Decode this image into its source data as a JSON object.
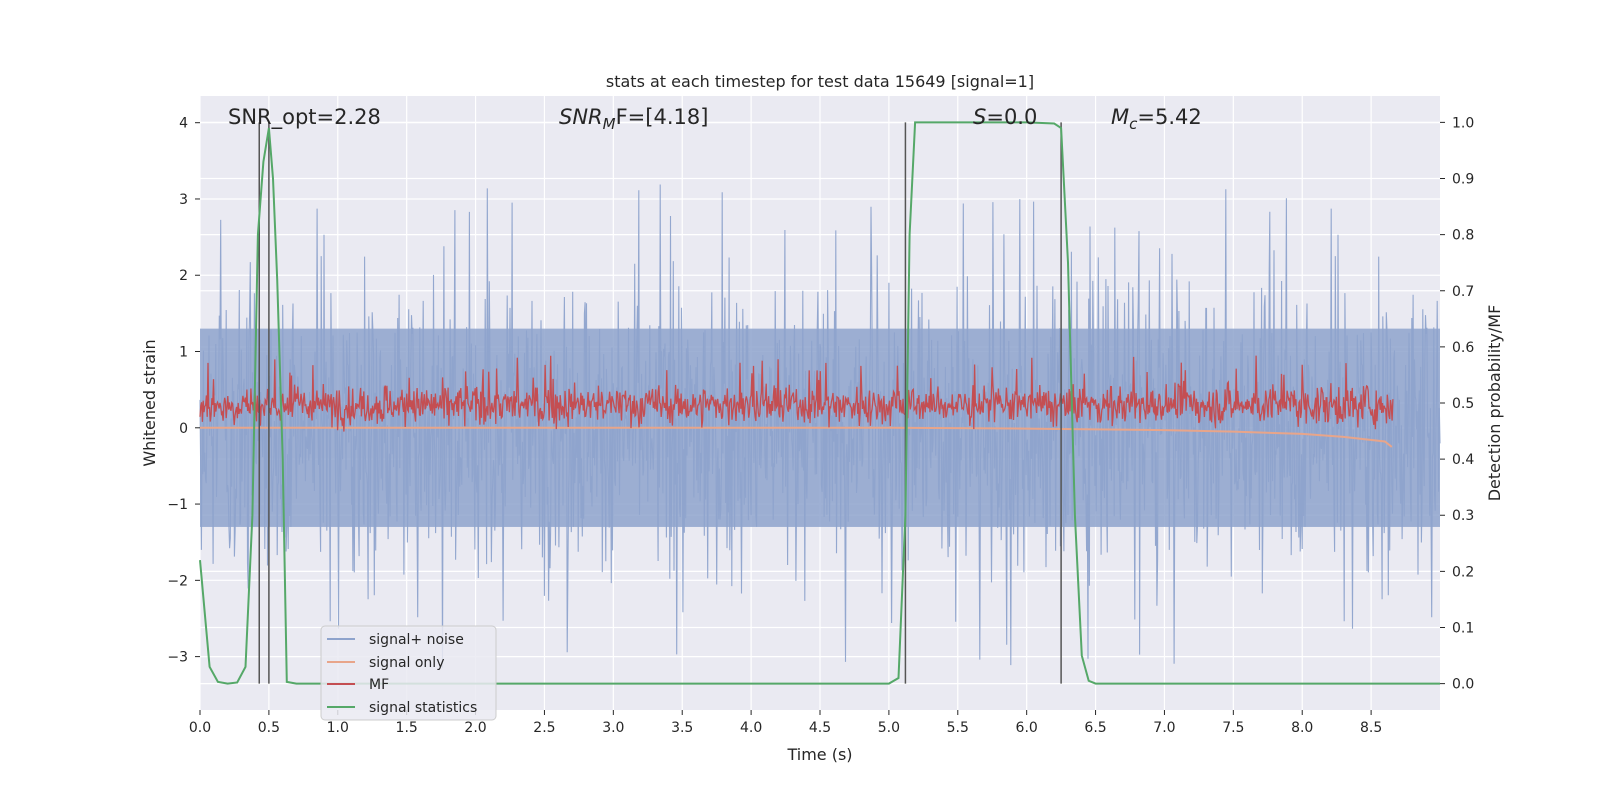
{
  "chart_data": {
    "type": "line",
    "title": "stats at each timestep for test data 15649 [signal=1]",
    "xlabel": "Time (s)",
    "ylabel_left": "Whitened strain",
    "ylabel_right": "Detection probability/MF",
    "xlim": [
      0,
      9.0
    ],
    "ylim_left": [
      -3.7,
      4.35
    ],
    "ylim_right": [
      -0.047,
      1.047
    ],
    "xticks": [
      "0.0",
      "0.5",
      "1.0",
      "1.5",
      "2.0",
      "2.5",
      "3.0",
      "3.5",
      "4.0",
      "4.5",
      "5.0",
      "5.5",
      "6.0",
      "6.5",
      "7.0",
      "7.5",
      "8.0",
      "8.5"
    ],
    "yticks_left": [
      "4",
      "3",
      "2",
      "1",
      "0",
      "−1",
      "−2",
      "−3"
    ],
    "yticks_right": [
      "1.0",
      "0.9",
      "0.8",
      "0.7",
      "0.6",
      "0.5",
      "0.4",
      "0.3",
      "0.2",
      "0.1",
      "0.0"
    ],
    "grid": true,
    "legend_position": "lower-left",
    "annotations": {
      "snr_opt": "SNR_opt=2.28",
      "snr_mf_sym": "SNR",
      "snr_mf_sub": "M",
      "snr_mf_rest": "F=[4.18]",
      "s_sym": "S",
      "s_rest": "=0.0",
      "mc_sym": "M",
      "mc_sub": "c",
      "mc_rest": "=5.42"
    },
    "vertical_markers": [
      0.43,
      0.5,
      5.12,
      6.25
    ],
    "series": [
      {
        "name": "signal+ noise",
        "color": "#8ea3cc",
        "axis": "left",
        "description": "noise band",
        "center": 0.0,
        "typical_range": [
          -1.3,
          1.3
        ],
        "max": 4.0,
        "min": -3.45
      },
      {
        "name": "signal only",
        "color": "#e8a58a",
        "axis": "left",
        "values_x": [
          0,
          1,
          2,
          3,
          4,
          5,
          6,
          7,
          7.5,
          8,
          8.3,
          8.6,
          8.65
        ],
        "values_y": [
          0.0,
          0.0,
          0.0,
          0.0,
          0.0,
          0.0,
          -0.01,
          -0.03,
          -0.05,
          -0.08,
          -0.12,
          -0.18,
          -0.25
        ]
      },
      {
        "name": "MF",
        "color": "#c44e52",
        "axis": "left",
        "center": 0.3,
        "typical_range": [
          0.0,
          0.65
        ],
        "max": 0.97
      },
      {
        "name": "signal statistics",
        "color": "#55a868",
        "axis": "right",
        "x": [
          0.0,
          0.07,
          0.13,
          0.2,
          0.27,
          0.33,
          0.38,
          0.42,
          0.46,
          0.5,
          0.53,
          0.56,
          0.6,
          0.63,
          0.7,
          1.0,
          2.0,
          3.0,
          4.0,
          4.5,
          5.0,
          5.07,
          5.12,
          5.15,
          5.19,
          5.5,
          6.0,
          6.2,
          6.25,
          6.3,
          6.35,
          6.4,
          6.45,
          6.5,
          7.0,
          8.0,
          9.0
        ],
        "y": [
          0.22,
          0.03,
          0.003,
          0.0,
          0.002,
          0.03,
          0.3,
          0.8,
          0.93,
          0.99,
          0.9,
          0.72,
          0.4,
          0.003,
          0.0,
          0.0,
          0.0,
          0.0,
          0.0,
          0.0,
          0.0,
          0.01,
          0.3,
          0.8,
          1.0,
          1.0,
          1.0,
          0.998,
          0.99,
          0.75,
          0.3,
          0.05,
          0.005,
          0.0,
          0.0,
          0.0,
          0.0
        ]
      }
    ]
  }
}
